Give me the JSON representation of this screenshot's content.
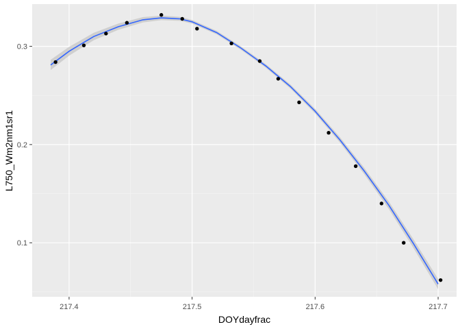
{
  "chart_data": {
    "type": "scatter",
    "title": "",
    "xlabel": "DOYdayfrac",
    "ylabel": "L750_Wm2nm1sr1",
    "xlim": [
      217.37,
      217.715
    ],
    "ylim": [
      0.045,
      0.343
    ],
    "x_ticks": [
      217.4,
      217.5,
      217.6,
      217.7
    ],
    "x_tick_labels": [
      "217.4",
      "217.5",
      "217.6",
      "217.7"
    ],
    "y_ticks": [
      0.1,
      0.2,
      0.3
    ],
    "y_tick_labels": [
      "0.1",
      "0.2",
      "0.3"
    ],
    "grid": true,
    "legend": "none",
    "points": {
      "x": [
        217.389,
        217.412,
        217.43,
        217.447,
        217.475,
        217.492,
        217.504,
        217.532,
        217.555,
        217.57,
        217.587,
        217.611,
        217.633,
        217.654,
        217.672,
        217.702
      ],
      "y": [
        0.284,
        0.301,
        0.313,
        0.324,
        0.332,
        0.328,
        0.318,
        0.303,
        0.285,
        0.267,
        0.243,
        0.212,
        0.178,
        0.14,
        0.1,
        0.062
      ]
    },
    "smooth_line": {
      "x": [
        217.385,
        217.4,
        217.42,
        217.44,
        217.46,
        217.475,
        217.49,
        217.5,
        217.52,
        217.54,
        217.56,
        217.58,
        217.6,
        217.62,
        217.64,
        217.66,
        217.68,
        217.7
      ],
      "y": [
        0.281,
        0.295,
        0.31,
        0.32,
        0.327,
        0.329,
        0.328,
        0.325,
        0.314,
        0.298,
        0.28,
        0.259,
        0.234,
        0.205,
        0.173,
        0.138,
        0.099,
        0.058
      ]
    },
    "colors": {
      "panel_background": "#ebebeb",
      "grid_major": "#ffffff",
      "grid_minor": "#f5f5f5",
      "points": "#000000",
      "smooth_line": "#3366ff",
      "ribbon": "#c6c6c6",
      "tick_text": "#4d4d4d"
    }
  }
}
